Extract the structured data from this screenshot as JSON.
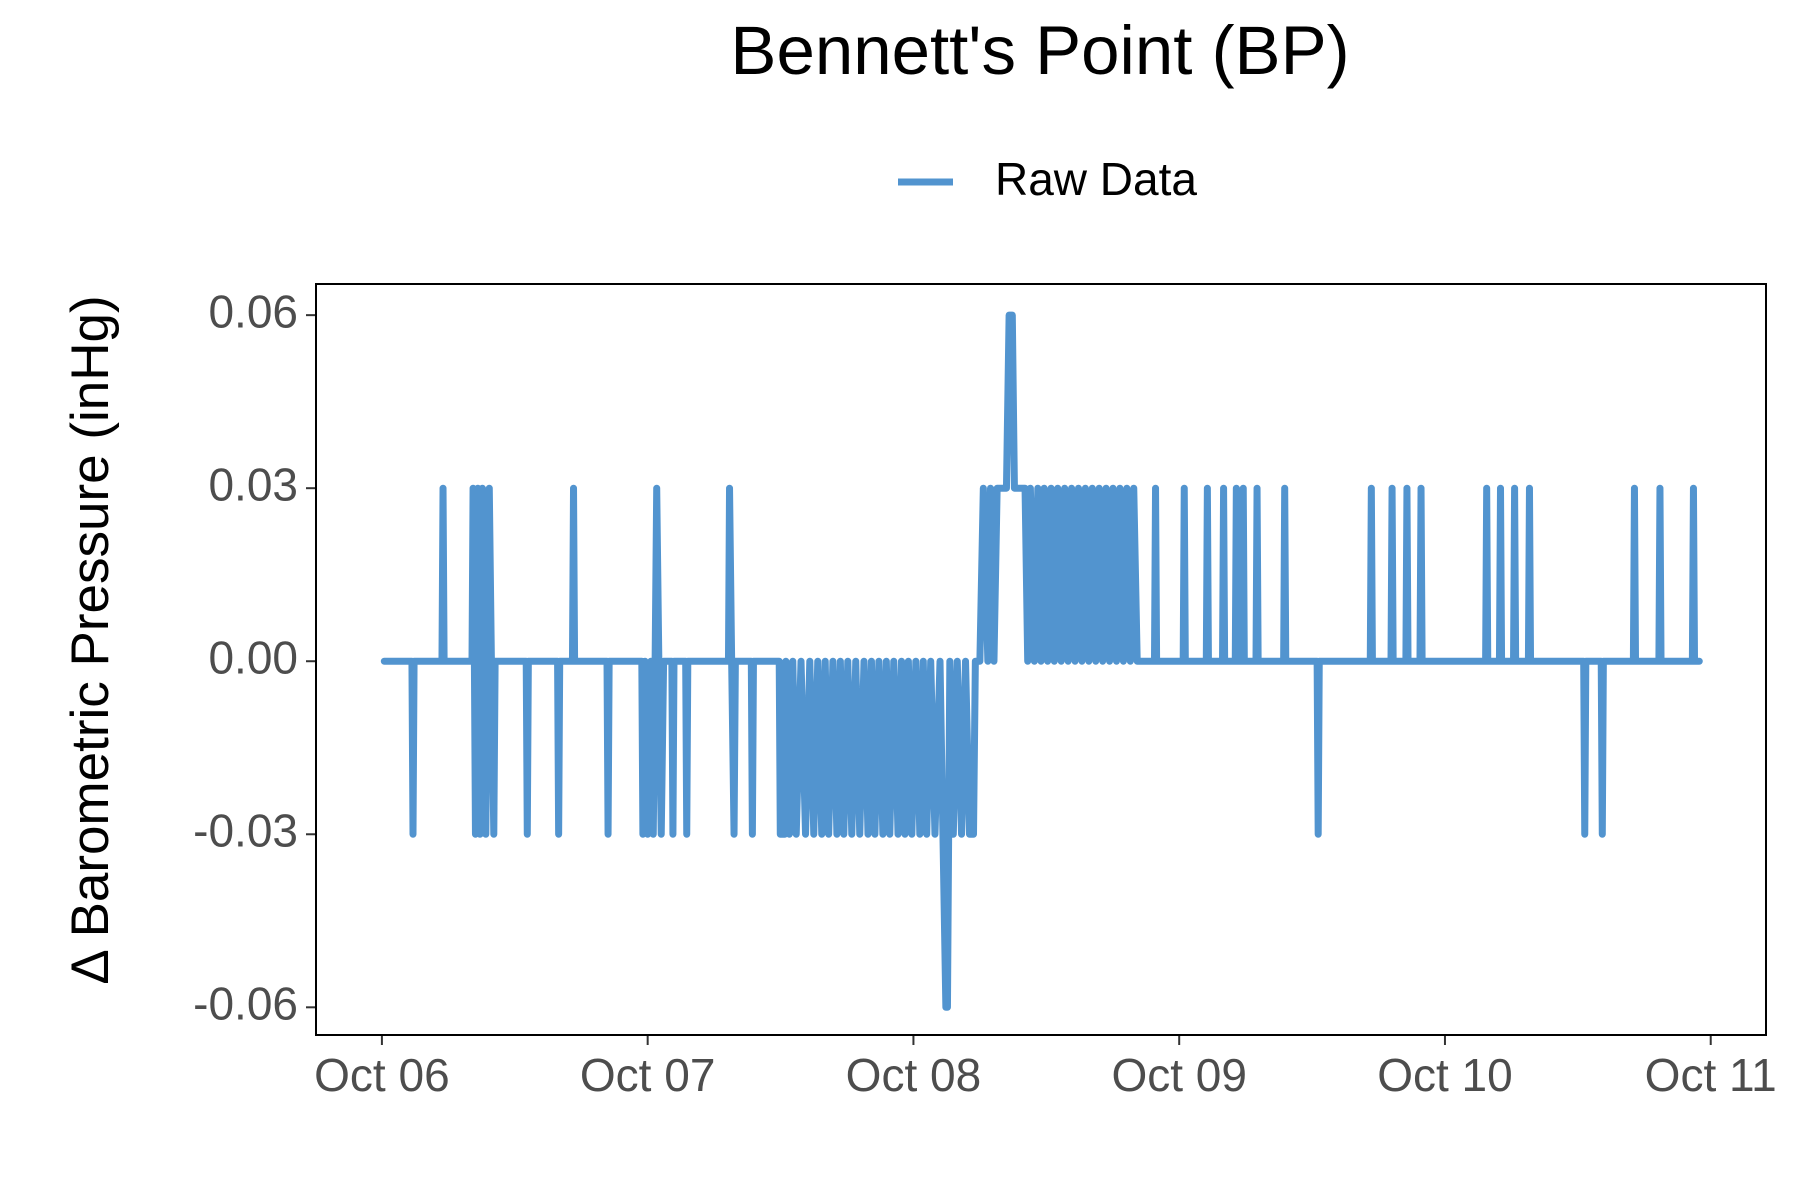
{
  "chart_data": {
    "type": "line",
    "title": "Bennett's Point (BP)",
    "y_label": "Δ Barometric Pressure (inHg)",
    "legend_position": "top",
    "grid": false,
    "xlim": [
      -0.248,
      5.208
    ],
    "xticks": [
      {
        "value": 0,
        "label": "Oct 06"
      },
      {
        "value": 1,
        "label": "Oct 07"
      },
      {
        "value": 2,
        "label": "Oct 08"
      },
      {
        "value": 3,
        "label": "Oct 09"
      },
      {
        "value": 4,
        "label": "Oct 10"
      },
      {
        "value": 5,
        "label": "Oct 11"
      }
    ],
    "ylim": [
      -0.0648,
      0.0654
    ],
    "yticks": [
      -0.06,
      -0.03,
      {
        "value": 0,
        "label": "0.00"
      },
      0.03,
      0.06
    ],
    "x": [
      0.009,
      0.113,
      0.117,
      0.121,
      0.226,
      0.23,
      0.234,
      0.339,
      0.343,
      0.348,
      0.352,
      0.356,
      0.361,
      0.365,
      0.369,
      0.374,
      0.378,
      0.385,
      0.391,
      0.397,
      0.404,
      0.412,
      0.421,
      0.426,
      0.543,
      0.547,
      0.551,
      0.661,
      0.665,
      0.669,
      0.717,
      0.721,
      0.725,
      0.847,
      0.851,
      0.855,
      0.978,
      0.982,
      0.99,
      1.0,
      1.012,
      1.021,
      1.028,
      1.034,
      1.042,
      1.051,
      1.06,
      1.091,
      1.095,
      1.099,
      1.143,
      1.147,
      1.151,
      1.304,
      1.308,
      1.316,
      1.325,
      1.33,
      1.39,
      1.394,
      1.398,
      1.495,
      1.499,
      1.516,
      1.52,
      1.533,
      1.546,
      1.559,
      1.577,
      1.594,
      1.61,
      1.625,
      1.64,
      1.655,
      1.668,
      1.681,
      1.697,
      1.712,
      1.725,
      1.738,
      1.753,
      1.768,
      1.783,
      1.798,
      1.814,
      1.829,
      1.842,
      1.855,
      1.87,
      1.885,
      1.898,
      1.911,
      1.926,
      1.942,
      1.955,
      1.968,
      1.981,
      1.994,
      2.009,
      2.024,
      2.037,
      2.05,
      2.065,
      2.081,
      2.1,
      2.122,
      2.128,
      2.137,
      2.15,
      2.165,
      2.181,
      2.196,
      2.211,
      2.226,
      2.233,
      2.25,
      2.263,
      2.28,
      2.29,
      2.303,
      2.315,
      2.35,
      2.36,
      2.372,
      2.38,
      2.42,
      2.43,
      2.44,
      2.455,
      2.468,
      2.48,
      2.492,
      2.505,
      2.518,
      2.53,
      2.543,
      2.556,
      2.569,
      2.582,
      2.595,
      2.608,
      2.621,
      2.634,
      2.647,
      2.66,
      2.673,
      2.686,
      2.699,
      2.712,
      2.725,
      2.738,
      2.751,
      2.764,
      2.777,
      2.79,
      2.803,
      2.816,
      2.829,
      2.842,
      2.907,
      2.911,
      2.915,
      3.015,
      3.019,
      3.023,
      3.102,
      3.106,
      3.11,
      3.163,
      3.167,
      3.171,
      3.211,
      3.215,
      3.219,
      3.237,
      3.241,
      3.245,
      3.289,
      3.293,
      3.297,
      3.393,
      3.397,
      3.401,
      3.519,
      3.523,
      3.527,
      3.719,
      3.723,
      3.727,
      3.797,
      3.801,
      3.805,
      3.853,
      3.857,
      3.861,
      3.906,
      3.91,
      3.914,
      4.153,
      4.157,
      4.161,
      4.205,
      4.209,
      4.213,
      4.258,
      4.262,
      4.266,
      4.314,
      4.318,
      4.322,
      4.522,
      4.526,
      4.53,
      4.588,
      4.592,
      4.596,
      4.709,
      4.713,
      4.717,
      4.805,
      4.809,
      4.813,
      4.931,
      4.935,
      4.939,
      4.957
    ],
    "series": [
      {
        "name": "Raw Data",
        "color": "#5294cf",
        "values": [
          0,
          0,
          -0.03,
          0,
          0,
          0.03,
          0,
          0,
          0.03,
          0,
          -0.03,
          0,
          0.03,
          0,
          -0.03,
          0,
          0.03,
          0,
          -0.03,
          0,
          0.03,
          0,
          -0.03,
          0,
          0,
          -0.03,
          0,
          0,
          -0.03,
          0,
          0,
          0.03,
          0,
          0,
          -0.03,
          0,
          0,
          -0.03,
          0,
          -0.03,
          0,
          -0.03,
          0,
          0.03,
          0,
          -0.03,
          0,
          0,
          -0.03,
          0,
          0,
          -0.03,
          0,
          0,
          0.03,
          0,
          -0.03,
          0,
          0,
          -0.03,
          0,
          0,
          -0.03,
          -0.03,
          0,
          -0.03,
          0,
          -0.03,
          0,
          -0.03,
          0,
          -0.03,
          0,
          -0.03,
          0,
          -0.03,
          0,
          -0.03,
          0,
          -0.03,
          0,
          -0.03,
          0,
          -0.03,
          0,
          -0.03,
          0,
          -0.03,
          0,
          -0.03,
          0,
          -0.03,
          0,
          -0.03,
          0,
          -0.03,
          0,
          -0.03,
          0,
          -0.03,
          0,
          -0.03,
          0,
          -0.03,
          0,
          -0.06,
          -0.06,
          0,
          -0.03,
          0,
          -0.03,
          0,
          -0.03,
          -0.03,
          0,
          0,
          0.03,
          0,
          0.03,
          0,
          0.03,
          0.03,
          0.06,
          0.06,
          0.03,
          0.03,
          0,
          0.03,
          0,
          0.03,
          0,
          0.03,
          0,
          0.03,
          0,
          0.03,
          0,
          0.03,
          0,
          0.03,
          0,
          0.03,
          0,
          0.03,
          0,
          0.03,
          0,
          0.03,
          0,
          0.03,
          0,
          0.03,
          0,
          0.03,
          0,
          0.03,
          0,
          0.03,
          0,
          0,
          0.03,
          0,
          0,
          0.03,
          0,
          0,
          0.03,
          0,
          0,
          0.03,
          0,
          0,
          0.03,
          0,
          0,
          0.03,
          0,
          0,
          0.03,
          0,
          0,
          0.03,
          0,
          0,
          -0.03,
          0,
          0,
          0.03,
          0,
          0,
          0.03,
          0,
          0,
          0.03,
          0,
          0,
          0.03,
          0,
          0,
          0.03,
          0,
          0,
          0.03,
          0,
          0,
          0.03,
          0,
          0,
          0.03,
          0,
          0,
          -0.03,
          0,
          0,
          -0.03,
          0,
          0,
          0.03,
          0,
          0,
          0.03,
          0,
          0,
          0.03,
          0,
          0
        ]
      }
    ]
  }
}
